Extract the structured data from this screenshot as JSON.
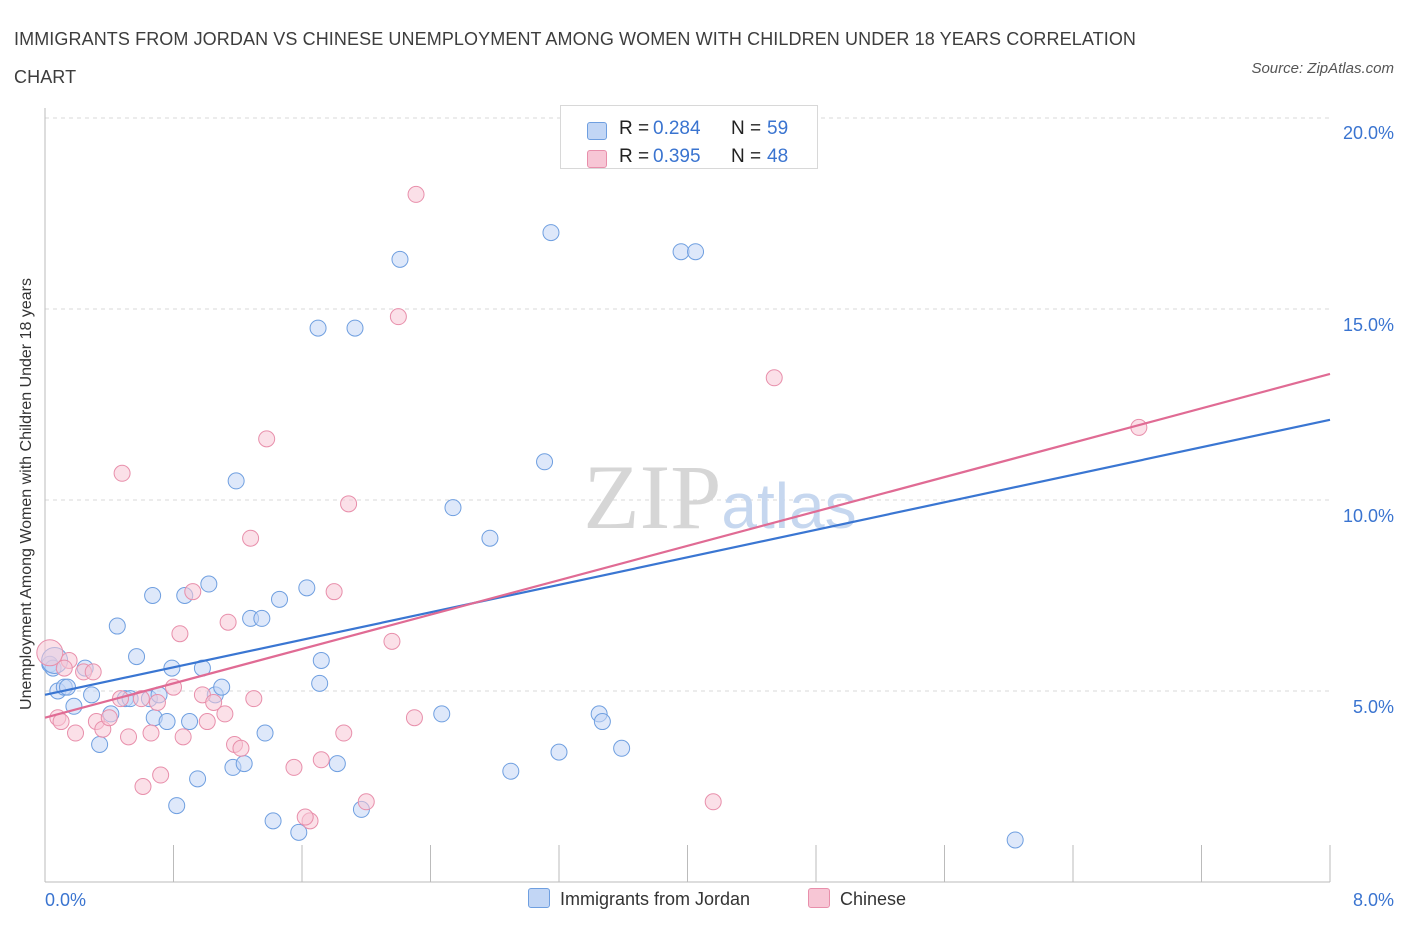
{
  "chart_data": {
    "type": "scatter",
    "title": "IMMIGRANTS FROM JORDAN VS CHINESE UNEMPLOYMENT AMONG WOMEN WITH CHILDREN UNDER 18 YEARS CORRELATION CHART",
    "source": "Source: ZipAtlas.com",
    "xlabel": "",
    "ylabel": "Unemployment Among Women with Children Under 18 years",
    "xlim": [
      0,
      8
    ],
    "ylim": [
      0,
      20
    ],
    "x_tick_labels": [
      "0.0%",
      "8.0%"
    ],
    "y_ticks": [
      5,
      10,
      15,
      20
    ],
    "y_tick_labels": [
      "5.0%",
      "10.0%",
      "15.0%",
      "20.0%"
    ],
    "grid": true,
    "watermark": "ZIPatlas",
    "legend": {
      "rows": [
        {
          "r_label": "R =",
          "r_value": "0.284",
          "n_label": "N =",
          "n_value": "59"
        },
        {
          "r_label": "R =",
          "r_value": "0.395",
          "n_label": "N =",
          "n_value": "48"
        }
      ]
    },
    "series": [
      {
        "name": "Immigrants from Jordan",
        "color": "#6f9fe0",
        "fill": "#c2d6f5",
        "line_color": "#3a76d2",
        "trend": [
          [
            0,
            4.9
          ],
          [
            8,
            12.1
          ]
        ],
        "points": [
          [
            0.03,
            5.7
          ],
          [
            0.05,
            5.6
          ],
          [
            0.08,
            5.0
          ],
          [
            0.12,
            5.1
          ],
          [
            0.18,
            4.6
          ],
          [
            0.29,
            4.9
          ],
          [
            0.34,
            3.6
          ],
          [
            0.41,
            4.4
          ],
          [
            0.45,
            6.7
          ],
          [
            0.5,
            4.8
          ],
          [
            0.53,
            4.8
          ],
          [
            0.57,
            5.9
          ],
          [
            0.65,
            4.8
          ],
          [
            0.67,
            7.5
          ],
          [
            0.68,
            4.3
          ],
          [
            0.71,
            4.9
          ],
          [
            0.76,
            4.2
          ],
          [
            0.79,
            5.6
          ],
          [
            0.82,
            2.0
          ],
          [
            0.87,
            7.5
          ],
          [
            0.9,
            4.2
          ],
          [
            0.95,
            2.7
          ],
          [
            0.98,
            5.6
          ],
          [
            1.02,
            7.8
          ],
          [
            1.06,
            4.9
          ],
          [
            1.1,
            5.1
          ],
          [
            1.17,
            3.0
          ],
          [
            1.19,
            10.5
          ],
          [
            1.24,
            3.1
          ],
          [
            1.28,
            6.9
          ],
          [
            1.35,
            6.9
          ],
          [
            1.37,
            3.9
          ],
          [
            1.42,
            1.6
          ],
          [
            1.46,
            7.4
          ],
          [
            1.58,
            1.3
          ],
          [
            1.63,
            7.7
          ],
          [
            1.7,
            14.5
          ],
          [
            1.71,
            5.2
          ],
          [
            1.72,
            5.8
          ],
          [
            1.82,
            3.1
          ],
          [
            1.93,
            14.5
          ],
          [
            1.97,
            1.9
          ],
          [
            2.21,
            16.3
          ],
          [
            2.54,
            9.8
          ],
          [
            2.77,
            9.0
          ],
          [
            2.9,
            2.9
          ],
          [
            3.11,
            11.0
          ],
          [
            3.15,
            17.0
          ],
          [
            3.2,
            3.4
          ],
          [
            3.45,
            4.4
          ],
          [
            3.47,
            4.2
          ],
          [
            3.59,
            3.5
          ],
          [
            3.96,
            16.5
          ],
          [
            4.05,
            16.5
          ],
          [
            6.04,
            1.1
          ],
          [
            0.14,
            5.1
          ],
          [
            0.25,
            5.6
          ],
          [
            2.47,
            4.4
          ],
          [
            0.06,
            5.8
          ]
        ]
      },
      {
        "name": "Chinese",
        "color": "#e88fab",
        "fill": "#f7c6d5",
        "line_color": "#e06b94",
        "trend": [
          [
            0,
            4.3
          ],
          [
            8,
            13.3
          ]
        ],
        "points": [
          [
            0.03,
            6.0
          ],
          [
            0.08,
            4.3
          ],
          [
            0.1,
            4.2
          ],
          [
            0.15,
            5.8
          ],
          [
            0.19,
            3.9
          ],
          [
            0.24,
            5.5
          ],
          [
            0.3,
            5.5
          ],
          [
            0.32,
            4.2
          ],
          [
            0.36,
            4.0
          ],
          [
            0.4,
            4.3
          ],
          [
            0.47,
            4.8
          ],
          [
            0.48,
            10.7
          ],
          [
            0.52,
            3.8
          ],
          [
            0.6,
            4.8
          ],
          [
            0.61,
            2.5
          ],
          [
            0.66,
            3.9
          ],
          [
            0.7,
            4.7
          ],
          [
            0.72,
            2.8
          ],
          [
            0.8,
            5.1
          ],
          [
            0.84,
            6.5
          ],
          [
            0.86,
            3.8
          ],
          [
            0.92,
            7.6
          ],
          [
            0.98,
            4.9
          ],
          [
            1.01,
            4.2
          ],
          [
            1.05,
            4.7
          ],
          [
            1.12,
            4.4
          ],
          [
            1.14,
            6.8
          ],
          [
            1.18,
            3.6
          ],
          [
            1.22,
            3.5
          ],
          [
            1.28,
            9.0
          ],
          [
            1.3,
            4.8
          ],
          [
            1.38,
            11.6
          ],
          [
            1.55,
            3.0
          ],
          [
            1.65,
            1.6
          ],
          [
            1.72,
            3.2
          ],
          [
            1.8,
            7.6
          ],
          [
            1.86,
            3.9
          ],
          [
            1.89,
            9.9
          ],
          [
            2.0,
            2.1
          ],
          [
            2.16,
            6.3
          ],
          [
            2.2,
            14.8
          ],
          [
            2.3,
            4.3
          ],
          [
            2.31,
            18.0
          ],
          [
            4.16,
            2.1
          ],
          [
            4.54,
            13.2
          ],
          [
            6.81,
            11.9
          ],
          [
            1.62,
            1.7
          ],
          [
            0.12,
            5.6
          ]
        ]
      }
    ]
  }
}
